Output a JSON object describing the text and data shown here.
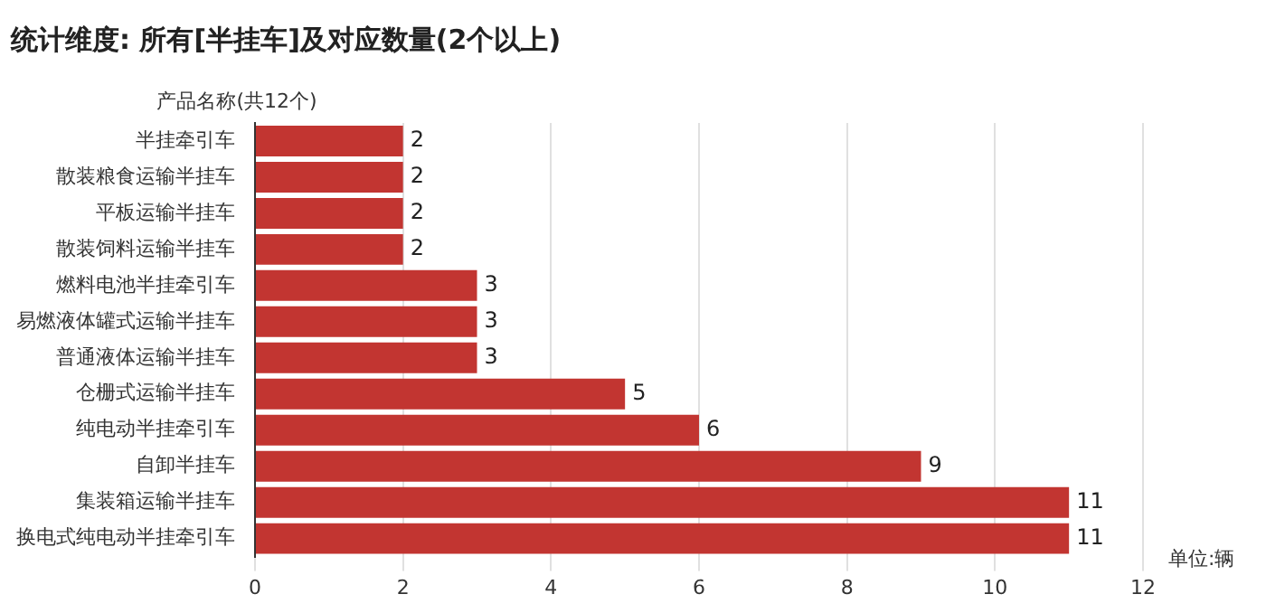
{
  "chart_data": {
    "type": "bar",
    "orientation": "horizontal",
    "title": "统计维度: 所有[半挂车]及对应数量(2个以上)",
    "ylabel": "产品名称(共12个)",
    "xlabel": "单位:辆",
    "categories": [
      "半挂牵引车",
      "散装粮食运输半挂车",
      "平板运输半挂车",
      "散装饲料运输半挂车",
      "燃料电池半挂牵引车",
      "易燃液体罐式运输半挂车",
      "普通液体运输半挂车",
      "仓栅式运输半挂车",
      "纯电动半挂牵引车",
      "自卸半挂车",
      "集装箱运输半挂车",
      "换电式纯电动半挂牵引车"
    ],
    "values": [
      2,
      2,
      2,
      2,
      3,
      3,
      3,
      5,
      6,
      9,
      11,
      11
    ],
    "color": "#c23531",
    "xlim": [
      0,
      12
    ],
    "xticks": [
      0,
      2,
      4,
      6,
      8,
      10,
      12
    ],
    "grid": "x",
    "data_labels": true,
    "legend": false
  }
}
